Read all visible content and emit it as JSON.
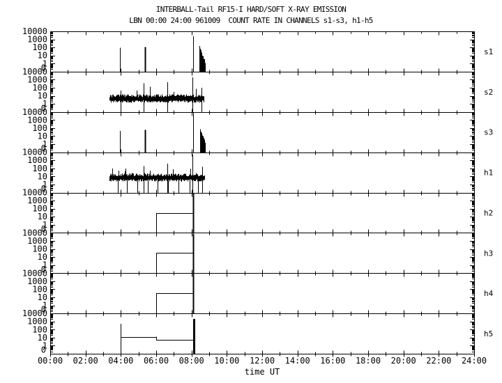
{
  "header": {
    "title": "INTERBALL-Tail RF15-I HARD/SOFT X-RAY EMISSION",
    "subtitle": "LBN 00:00 24:00 961009  COUNT RATE IN CHANNELS s1-s3, h1-h5"
  },
  "colors": {
    "foreground": "#000000",
    "background": "#ffffff"
  },
  "chart_data": {
    "type": "line",
    "xlabel": "time UT",
    "x_range_hours": [
      0,
      24
    ],
    "x_major_ticks": [
      "00:00",
      "02:00",
      "04:00",
      "06:00",
      "08:00",
      "10:00",
      "12:00",
      "14:00",
      "16:00",
      "18:00",
      "20:00",
      "22:00",
      "24:00"
    ],
    "y_scale": "log",
    "y_range": [
      1,
      10000
    ],
    "y_tick_labels": [
      "10000",
      "1000",
      "100",
      "10",
      "1",
      "0"
    ],
    "grid": false,
    "legend": "right-side panel labels",
    "panels": [
      {
        "label": "s1",
        "baseline": 0,
        "spikes": [
          {
            "t": 3.95,
            "v": 90
          },
          {
            "t": 5.38,
            "v": 110,
            "w": 2
          },
          {
            "t": 8.1,
            "v": 2500
          }
        ],
        "bursts": [
          {
            "t0": 8.43,
            "t1": 8.78,
            "peak": 110,
            "end": 1.5
          }
        ]
      },
      {
        "label": "s2",
        "band": {
          "t0": 3.35,
          "t1": 8.7,
          "level": 5,
          "seed": 7
        },
        "spikes": [
          {
            "t": 3.97,
            "v": 45
          },
          {
            "t": 5.3,
            "v": 350
          },
          {
            "t": 6.65,
            "v": 500
          },
          {
            "t": 8.07,
            "v": 2000
          },
          {
            "t": 8.55,
            "v": 100
          }
        ]
      },
      {
        "label": "s3",
        "baseline": 0,
        "spikes": [
          {
            "t": 3.95,
            "v": 45
          },
          {
            "t": 5.37,
            "v": 60,
            "w": 2
          },
          {
            "t": 8.08,
            "v": 8000
          }
        ],
        "bursts": [
          {
            "t0": 8.47,
            "t1": 8.77,
            "peak": 90,
            "end": 1.5
          }
        ]
      },
      {
        "label": "h1",
        "band": {
          "t0": 3.35,
          "t1": 8.72,
          "level": 8,
          "seed": 13
        },
        "drops": [
          3.82,
          4.34,
          4.93,
          5.53,
          6.08,
          6.68,
          7.28,
          7.9,
          8.38
        ],
        "spikes": [
          {
            "t": 5.3,
            "v": 200
          },
          {
            "t": 6.65,
            "v": 400
          },
          {
            "t": 8.07,
            "v": 5000
          },
          {
            "t": 8.6,
            "v": 150
          }
        ]
      },
      {
        "label": "h2",
        "steps": [
          {
            "t0": 6.0,
            "t1": 8.1,
            "v": 30
          }
        ],
        "spikes": [
          {
            "t": 8.1,
            "v": 9000,
            "w": 2
          }
        ]
      },
      {
        "label": "h3",
        "steps": [
          {
            "t0": 6.0,
            "t1": 8.1,
            "v": 35
          }
        ],
        "spikes": [
          {
            "t": 8.1,
            "v": 8000,
            "w": 2
          }
        ]
      },
      {
        "label": "h4",
        "steps": [
          {
            "t0": 6.0,
            "t1": 8.1,
            "v": 30
          }
        ],
        "spikes": [
          {
            "t": 8.1,
            "v": 9000,
            "w": 2
          }
        ]
      },
      {
        "label": "h5",
        "steps": [
          {
            "t0": 3.97,
            "t1": 6.0,
            "v": 13
          },
          {
            "t0": 6.0,
            "t1": 8.13,
            "v": 5
          }
        ],
        "spikes": [
          {
            "t": 3.97,
            "v": 500
          },
          {
            "t": 8.13,
            "v": 2000,
            "w": 3
          }
        ]
      }
    ]
  }
}
